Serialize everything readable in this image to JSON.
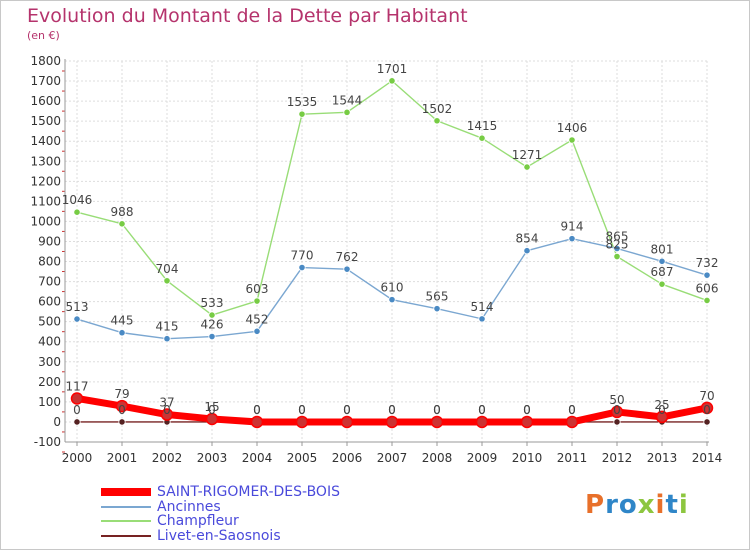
{
  "title": "Evolution du Montant de la Dette par Habitant",
  "unit_label": "(en €)",
  "logo": {
    "text": "Proxiti",
    "letter_colors": [
      "#e8702a",
      "#2f86c8",
      "#2f86c8",
      "#8dc63f",
      "#e8702a",
      "#2f86c8",
      "#8dc63f"
    ]
  },
  "colors": {
    "title": "#b5336c",
    "axis_text": "#333333",
    "value_text": "#444444",
    "grid": "#dddddd",
    "axis": "#999999"
  },
  "chart_data": {
    "type": "line",
    "categories": [
      "2000",
      "2001",
      "2002",
      "2003",
      "2004",
      "2005",
      "2006",
      "2007",
      "2008",
      "2009",
      "2010",
      "2011",
      "2012",
      "2013",
      "2014"
    ],
    "y_ticks": [
      "-100",
      "0",
      "100",
      "200",
      "300",
      "400",
      "500",
      "600",
      "700",
      "800",
      "900",
      "1000",
      "1100",
      "1200",
      "1300",
      "1400",
      "1500",
      "1600",
      "1700",
      "1800"
    ],
    "ylim": [
      -100,
      1800
    ],
    "grid": true,
    "legend_position": "bottom-left",
    "series": [
      {
        "name": "SAINT-RIGOMER-DES-BOIS",
        "color": "#ff0000",
        "marker_color": "#cc3333",
        "legend_text_color": "#4a4adb",
        "width": "thick",
        "labeled": true,
        "values": [
          117,
          79,
          37,
          15,
          0,
          0,
          0,
          0,
          0,
          0,
          0,
          0,
          50,
          25,
          70
        ]
      },
      {
        "name": "Ancinnes",
        "color": "#7ba7d1",
        "marker_color": "#4a8ac4",
        "legend_text_color": "#4a4adb",
        "width": "thin",
        "labeled": true,
        "values": [
          513,
          445,
          415,
          426,
          452,
          770,
          762,
          610,
          565,
          514,
          854,
          914,
          865,
          801,
          732
        ]
      },
      {
        "name": "Champfleur",
        "color": "#99dd77",
        "marker_color": "#77cc44",
        "legend_text_color": "#4a4adb",
        "width": "thin",
        "labeled": true,
        "values": [
          1046,
          988,
          704,
          533,
          603,
          1535,
          1544,
          1701,
          1502,
          1415,
          1271,
          1406,
          825,
          687,
          606
        ]
      },
      {
        "name": "Livet-en-Saosnois",
        "color": "#772222",
        "marker_color": "#552222",
        "legend_text_color": "#4a4adb",
        "width": "thin",
        "labeled": true,
        "values": [
          0,
          0,
          0,
          0,
          0,
          0,
          0,
          0,
          0,
          0,
          0,
          0,
          0,
          0,
          0
        ]
      }
    ]
  }
}
